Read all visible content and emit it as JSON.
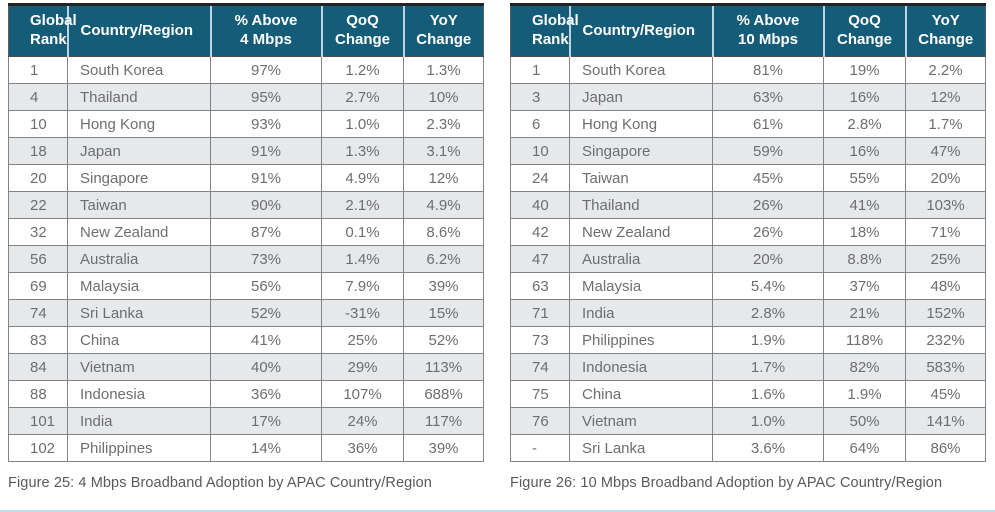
{
  "colors": {
    "header_bg": "#155C78",
    "header_text": "#ffffff",
    "row_stripe": "#e7e8e9",
    "body_text": "#6d6e71",
    "border": "#838487",
    "top_border": "#222325",
    "caption_text": "#58595b",
    "bottom_rule": "#c2dbe8"
  },
  "chart_data": [
    {
      "type": "table",
      "title": "Figure 25: 4 Mbps Broadband Adoption by APAC Country/Region",
      "columns": [
        "Global Rank",
        "Country/Region",
        "% Above 4 Mbps",
        "QoQ Change",
        "YoY Change"
      ],
      "rows": [
        [
          "1",
          "South Korea",
          "97%",
          "1.2%",
          "1.3%"
        ],
        [
          "4",
          "Thailand",
          "95%",
          "2.7%",
          "10%"
        ],
        [
          "10",
          "Hong Kong",
          "93%",
          "1.0%",
          "2.3%"
        ],
        [
          "18",
          "Japan",
          "91%",
          "1.3%",
          "3.1%"
        ],
        [
          "20",
          "Singapore",
          "91%",
          "4.9%",
          "12%"
        ],
        [
          "22",
          "Taiwan",
          "90%",
          "2.1%",
          "4.9%"
        ],
        [
          "32",
          "New Zealand",
          "87%",
          "0.1%",
          "8.6%"
        ],
        [
          "56",
          "Australia",
          "73%",
          "1.4%",
          "6.2%"
        ],
        [
          "69",
          "Malaysia",
          "56%",
          "7.9%",
          "39%"
        ],
        [
          "74",
          "Sri Lanka",
          "52%",
          "-31%",
          "15%"
        ],
        [
          "83",
          "China",
          "41%",
          "25%",
          "52%"
        ],
        [
          "84",
          "Vietnam",
          "40%",
          "29%",
          "113%"
        ],
        [
          "88",
          "Indonesia",
          "36%",
          "107%",
          "688%"
        ],
        [
          "101",
          "India",
          "17%",
          "24%",
          "117%"
        ],
        [
          "102",
          "Philippines",
          "14%",
          "36%",
          "39%"
        ]
      ]
    },
    {
      "type": "table",
      "title": "Figure 26: 10 Mbps Broadband Adoption by APAC Country/Region",
      "columns": [
        "Global Rank",
        "Country/Region",
        "% Above 10 Mbps",
        "QoQ Change",
        "YoY Change"
      ],
      "rows": [
        [
          "1",
          "South Korea",
          "81%",
          "19%",
          "2.2%"
        ],
        [
          "3",
          "Japan",
          "63%",
          "16%",
          "12%"
        ],
        [
          "6",
          "Hong Kong",
          "61%",
          "2.8%",
          "1.7%"
        ],
        [
          "10",
          "Singapore",
          "59%",
          "16%",
          "47%"
        ],
        [
          "24",
          "Taiwan",
          "45%",
          "55%",
          "20%"
        ],
        [
          "40",
          "Thailand",
          "26%",
          "41%",
          "103%"
        ],
        [
          "42",
          "New Zealand",
          "26%",
          "18%",
          "71%"
        ],
        [
          "47",
          "Australia",
          "20%",
          "8.8%",
          "25%"
        ],
        [
          "63",
          "Malaysia",
          "5.4%",
          "37%",
          "48%"
        ],
        [
          "71",
          "India",
          "2.8%",
          "21%",
          "152%"
        ],
        [
          "73",
          "Philippines",
          "1.9%",
          "118%",
          "232%"
        ],
        [
          "74",
          "Indonesia",
          "1.7%",
          "82%",
          "583%"
        ],
        [
          "75",
          "China",
          "1.6%",
          "1.9%",
          "45%"
        ],
        [
          "76",
          "Vietnam",
          "1.0%",
          "50%",
          "141%"
        ],
        [
          "-",
          "Sri Lanka",
          "3.6%",
          "64%",
          "86%"
        ]
      ]
    }
  ],
  "tables": [
    {
      "caption": "Figure 25: 4 Mbps Broadband Adoption by APAC Country/Region",
      "headers": [
        "Global\nRank",
        "Country/Region",
        "% Above\n4 Mbps",
        "QoQ\nChange",
        "YoY\nChange"
      ],
      "rows": [
        [
          "1",
          "South Korea",
          "97%",
          "1.2%",
          "1.3%"
        ],
        [
          "4",
          "Thailand",
          "95%",
          "2.7%",
          "10%"
        ],
        [
          "10",
          "Hong Kong",
          "93%",
          "1.0%",
          "2.3%"
        ],
        [
          "18",
          "Japan",
          "91%",
          "1.3%",
          "3.1%"
        ],
        [
          "20",
          "Singapore",
          "91%",
          "4.9%",
          "12%"
        ],
        [
          "22",
          "Taiwan",
          "90%",
          "2.1%",
          "4.9%"
        ],
        [
          "32",
          "New Zealand",
          "87%",
          "0.1%",
          "8.6%"
        ],
        [
          "56",
          "Australia",
          "73%",
          "1.4%",
          "6.2%"
        ],
        [
          "69",
          "Malaysia",
          "56%",
          "7.9%",
          "39%"
        ],
        [
          "74",
          "Sri Lanka",
          "52%",
          "-31%",
          "15%"
        ],
        [
          "83",
          "China",
          "41%",
          "25%",
          "52%"
        ],
        [
          "84",
          "Vietnam",
          "40%",
          "29%",
          "113%"
        ],
        [
          "88",
          "Indonesia",
          "36%",
          "107%",
          "688%"
        ],
        [
          "101",
          "India",
          "17%",
          "24%",
          "117%"
        ],
        [
          "102",
          "Philippines",
          "14%",
          "36%",
          "39%"
        ]
      ]
    },
    {
      "caption": "Figure 26: 10 Mbps Broadband Adoption by APAC Country/Region",
      "headers": [
        "Global\nRank",
        "Country/Region",
        "% Above\n10 Mbps",
        "QoQ\nChange",
        "YoY\nChange"
      ],
      "rows": [
        [
          "1",
          "South Korea",
          "81%",
          "19%",
          "2.2%"
        ],
        [
          "3",
          "Japan",
          "63%",
          "16%",
          "12%"
        ],
        [
          "6",
          "Hong Kong",
          "61%",
          "2.8%",
          "1.7%"
        ],
        [
          "10",
          "Singapore",
          "59%",
          "16%",
          "47%"
        ],
        [
          "24",
          "Taiwan",
          "45%",
          "55%",
          "20%"
        ],
        [
          "40",
          "Thailand",
          "26%",
          "41%",
          "103%"
        ],
        [
          "42",
          "New Zealand",
          "26%",
          "18%",
          "71%"
        ],
        [
          "47",
          "Australia",
          "20%",
          "8.8%",
          "25%"
        ],
        [
          "63",
          "Malaysia",
          "5.4%",
          "37%",
          "48%"
        ],
        [
          "71",
          "India",
          "2.8%",
          "21%",
          "152%"
        ],
        [
          "73",
          "Philippines",
          "1.9%",
          "118%",
          "232%"
        ],
        [
          "74",
          "Indonesia",
          "1.7%",
          "82%",
          "583%"
        ],
        [
          "75",
          "China",
          "1.6%",
          "1.9%",
          "45%"
        ],
        [
          "76",
          "Vietnam",
          "1.0%",
          "50%",
          "141%"
        ],
        [
          "-",
          "Sri Lanka",
          "3.6%",
          "64%",
          "86%"
        ]
      ]
    }
  ]
}
